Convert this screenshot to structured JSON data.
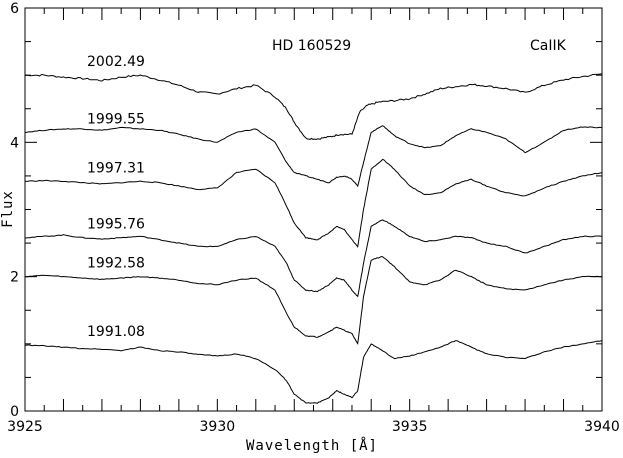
{
  "chart_data": {
    "type": "line",
    "title": "HD  160529",
    "subtitle": "CaIIK",
    "xlabel": "Wavelength [Å]",
    "ylabel": "Flux",
    "xlim": [
      3925,
      3940
    ],
    "ylim": [
      0,
      6
    ],
    "xticks": [
      3925,
      3930,
      3935,
      3940
    ],
    "yticks": [
      0,
      2,
      4,
      6
    ],
    "grid": false,
    "legend": "none",
    "series": [
      {
        "name": "2002.49",
        "x": [
          3925,
          3925.5,
          3926,
          3926.5,
          3927,
          3927.5,
          3928,
          3928.5,
          3929,
          3929.5,
          3930,
          3930.5,
          3931,
          3931.5,
          3931.8,
          3932,
          3932.3,
          3932.6,
          3932.9,
          3933.2,
          3933.5,
          3933.7,
          3933.9,
          3934.2,
          3934.6,
          3935,
          3935.4,
          3935.8,
          3936.2,
          3936.6,
          3937,
          3937.5,
          3938,
          3938.5,
          3939,
          3939.5,
          3940
        ],
        "y": [
          5.0,
          5.0,
          4.97,
          4.95,
          4.92,
          4.97,
          5.0,
          4.93,
          4.85,
          4.75,
          4.72,
          4.8,
          4.85,
          4.68,
          4.5,
          4.3,
          4.06,
          4.05,
          4.08,
          4.12,
          4.12,
          4.45,
          4.55,
          4.6,
          4.62,
          4.65,
          4.72,
          4.8,
          4.83,
          4.86,
          4.84,
          4.8,
          4.74,
          4.85,
          4.93,
          4.98,
          5.02
        ]
      },
      {
        "name": "1999.55",
        "x": [
          3925,
          3925.5,
          3926,
          3926.5,
          3927,
          3927.5,
          3928,
          3928.5,
          3929,
          3929.5,
          3930,
          3930.5,
          3931,
          3931.5,
          3931.8,
          3932,
          3932.3,
          3932.6,
          3932.9,
          3933.1,
          3933.3,
          3933.5,
          3933.65,
          3933.8,
          3934,
          3934.3,
          3934.6,
          3935,
          3935.4,
          3935.8,
          3936.2,
          3936.6,
          3937,
          3937.5,
          3938,
          3938.5,
          3939,
          3939.5,
          3940
        ],
        "y": [
          4.15,
          4.18,
          4.2,
          4.2,
          4.18,
          4.22,
          4.2,
          4.18,
          4.12,
          4.05,
          4.0,
          4.15,
          4.2,
          4.0,
          3.7,
          3.55,
          3.5,
          3.45,
          3.4,
          3.48,
          3.5,
          3.45,
          3.35,
          3.7,
          4.15,
          4.25,
          4.1,
          3.98,
          3.92,
          3.95,
          4.1,
          4.2,
          4.15,
          4.05,
          3.85,
          4.0,
          4.18,
          4.23,
          4.22
        ]
      },
      {
        "name": "1997.31",
        "x": [
          3925,
          3925.5,
          3926,
          3926.5,
          3927,
          3927.5,
          3928,
          3928.5,
          3929,
          3929.5,
          3930,
          3930.5,
          3931,
          3931.5,
          3931.8,
          3932,
          3932.3,
          3932.6,
          3932.9,
          3933.1,
          3933.3,
          3933.5,
          3933.65,
          3933.8,
          3934,
          3934.3,
          3934.6,
          3935,
          3935.4,
          3935.8,
          3936.2,
          3936.6,
          3937,
          3937.5,
          3938,
          3938.5,
          3939,
          3939.5,
          3940
        ],
        "y": [
          3.42,
          3.43,
          3.42,
          3.4,
          3.38,
          3.4,
          3.42,
          3.4,
          3.35,
          3.3,
          3.32,
          3.55,
          3.6,
          3.4,
          3.05,
          2.8,
          2.58,
          2.55,
          2.65,
          2.75,
          2.7,
          2.55,
          2.45,
          3.0,
          3.6,
          3.75,
          3.6,
          3.35,
          3.22,
          3.25,
          3.38,
          3.45,
          3.35,
          3.25,
          3.2,
          3.32,
          3.42,
          3.5,
          3.55
        ]
      },
      {
        "name": "1995.76",
        "x": [
          3925,
          3925.5,
          3926,
          3926.5,
          3927,
          3927.5,
          3928,
          3928.5,
          3929,
          3929.5,
          3930,
          3930.5,
          3931,
          3931.5,
          3931.8,
          3932,
          3932.3,
          3932.6,
          3932.9,
          3933.1,
          3933.3,
          3933.5,
          3933.65,
          3933.8,
          3934,
          3934.3,
          3934.6,
          3935,
          3935.4,
          3935.8,
          3936.2,
          3936.6,
          3937,
          3937.5,
          3938,
          3938.5,
          3939,
          3939.5,
          3940
        ],
        "y": [
          2.58,
          2.6,
          2.62,
          2.58,
          2.56,
          2.58,
          2.6,
          2.55,
          2.5,
          2.45,
          2.45,
          2.55,
          2.6,
          2.45,
          2.2,
          1.95,
          1.8,
          1.78,
          1.88,
          1.98,
          1.95,
          1.8,
          1.7,
          2.2,
          2.75,
          2.85,
          2.75,
          2.6,
          2.52,
          2.55,
          2.6,
          2.58,
          2.5,
          2.45,
          2.35,
          2.45,
          2.55,
          2.6,
          2.6
        ]
      },
      {
        "name": "1992.58",
        "x": [
          3925,
          3925.5,
          3926,
          3926.5,
          3927,
          3927.5,
          3928,
          3928.5,
          3929,
          3929.5,
          3930,
          3930.5,
          3931,
          3931.5,
          3931.8,
          3932,
          3932.3,
          3932.6,
          3932.9,
          3933.1,
          3933.3,
          3933.5,
          3933.65,
          3933.8,
          3934,
          3934.3,
          3934.6,
          3935,
          3935.4,
          3935.8,
          3936.2,
          3936.6,
          3937,
          3937.5,
          3938,
          3938.5,
          3939,
          3939.5,
          3940
        ],
        "y": [
          2.0,
          2.02,
          2.0,
          1.98,
          1.96,
          1.98,
          2.0,
          1.98,
          1.95,
          1.9,
          1.88,
          1.95,
          1.98,
          1.8,
          1.45,
          1.25,
          1.12,
          1.1,
          1.18,
          1.25,
          1.2,
          1.15,
          1.0,
          1.7,
          2.25,
          2.3,
          2.15,
          1.92,
          1.88,
          1.95,
          2.1,
          2.0,
          1.88,
          1.82,
          1.8,
          1.88,
          1.95,
          2.0,
          2.0
        ]
      },
      {
        "name": "1991.08",
        "x": [
          3925,
          3925.5,
          3926,
          3926.5,
          3927,
          3927.5,
          3928,
          3928.5,
          3929,
          3929.5,
          3930,
          3930.5,
          3931,
          3931.5,
          3931.8,
          3932,
          3932.3,
          3932.6,
          3932.9,
          3933.1,
          3933.3,
          3933.5,
          3933.65,
          3933.8,
          3934,
          3934.3,
          3934.6,
          3935,
          3935.4,
          3935.8,
          3936.2,
          3936.6,
          3937,
          3937.5,
          3938,
          3938.5,
          3939,
          3939.5,
          3940
        ],
        "y": [
          0.98,
          0.97,
          0.95,
          0.93,
          0.92,
          0.9,
          0.95,
          0.9,
          0.88,
          0.84,
          0.82,
          0.85,
          0.78,
          0.62,
          0.45,
          0.25,
          0.12,
          0.12,
          0.2,
          0.3,
          0.25,
          0.2,
          0.3,
          0.8,
          1.0,
          0.9,
          0.78,
          0.82,
          0.88,
          0.95,
          1.05,
          0.95,
          0.85,
          0.8,
          0.78,
          0.88,
          0.95,
          1.0,
          1.05
        ]
      }
    ]
  }
}
